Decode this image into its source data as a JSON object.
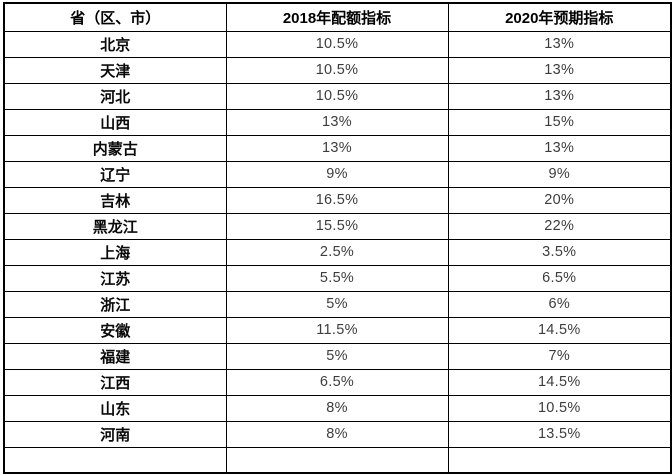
{
  "table": {
    "headers": {
      "province": "省（区、市）",
      "quota_2018": "2018年配额指标",
      "target_2020": "2020年预期指标"
    },
    "rows": [
      {
        "province": "北京",
        "y2018": "10.5%",
        "y2020": "13%"
      },
      {
        "province": "天津",
        "y2018": "10.5%",
        "y2020": "13%"
      },
      {
        "province": "河北",
        "y2018": "10.5%",
        "y2020": "13%"
      },
      {
        "province": "山西",
        "y2018": "13%",
        "y2020": "15%"
      },
      {
        "province": "内蒙古",
        "y2018": "13%",
        "y2020": "13%"
      },
      {
        "province": "辽宁",
        "y2018": "9%",
        "y2020": "9%"
      },
      {
        "province": "吉林",
        "y2018": "16.5%",
        "y2020": "20%"
      },
      {
        "province": "黑龙江",
        "y2018": "15.5%",
        "y2020": "22%"
      },
      {
        "province": "上海",
        "y2018": "2.5%",
        "y2020": "3.5%"
      },
      {
        "province": "江苏",
        "y2018": "5.5%",
        "y2020": "6.5%"
      },
      {
        "province": "浙江",
        "y2018": "5%",
        "y2020": "6%"
      },
      {
        "province": "安徽",
        "y2018": "11.5%",
        "y2020": "14.5%"
      },
      {
        "province": "福建",
        "y2018": "5%",
        "y2020": "7%"
      },
      {
        "province": "江西",
        "y2018": "6.5%",
        "y2020": "14.5%"
      },
      {
        "province": "山东",
        "y2018": "8%",
        "y2020": "10.5%"
      },
      {
        "province": "河南",
        "y2018": "8%",
        "y2020": "13.5%"
      }
    ],
    "colors": {
      "border": "#000000",
      "header_text": "#000000",
      "province_text": "#0a0a0a",
      "value_text": "#3d3d3d",
      "background": "#ffffff"
    }
  },
  "chart_data": {
    "type": "table",
    "title": "",
    "categories": [
      "北京",
      "天津",
      "河北",
      "山西",
      "内蒙古",
      "辽宁",
      "吉林",
      "黑龙江",
      "上海",
      "江苏",
      "浙江",
      "安徽",
      "福建",
      "江西",
      "山东",
      "河南"
    ],
    "series": [
      {
        "name": "2018年配额指标",
        "values": [
          10.5,
          10.5,
          10.5,
          13,
          13,
          9,
          16.5,
          15.5,
          2.5,
          5.5,
          5,
          11.5,
          5,
          6.5,
          8,
          8
        ]
      },
      {
        "name": "2020年预期指标",
        "values": [
          13,
          13,
          13,
          15,
          13,
          9,
          20,
          22,
          3.5,
          6.5,
          6,
          14.5,
          7,
          14.5,
          10.5,
          13.5
        ]
      }
    ],
    "value_unit": "%"
  }
}
